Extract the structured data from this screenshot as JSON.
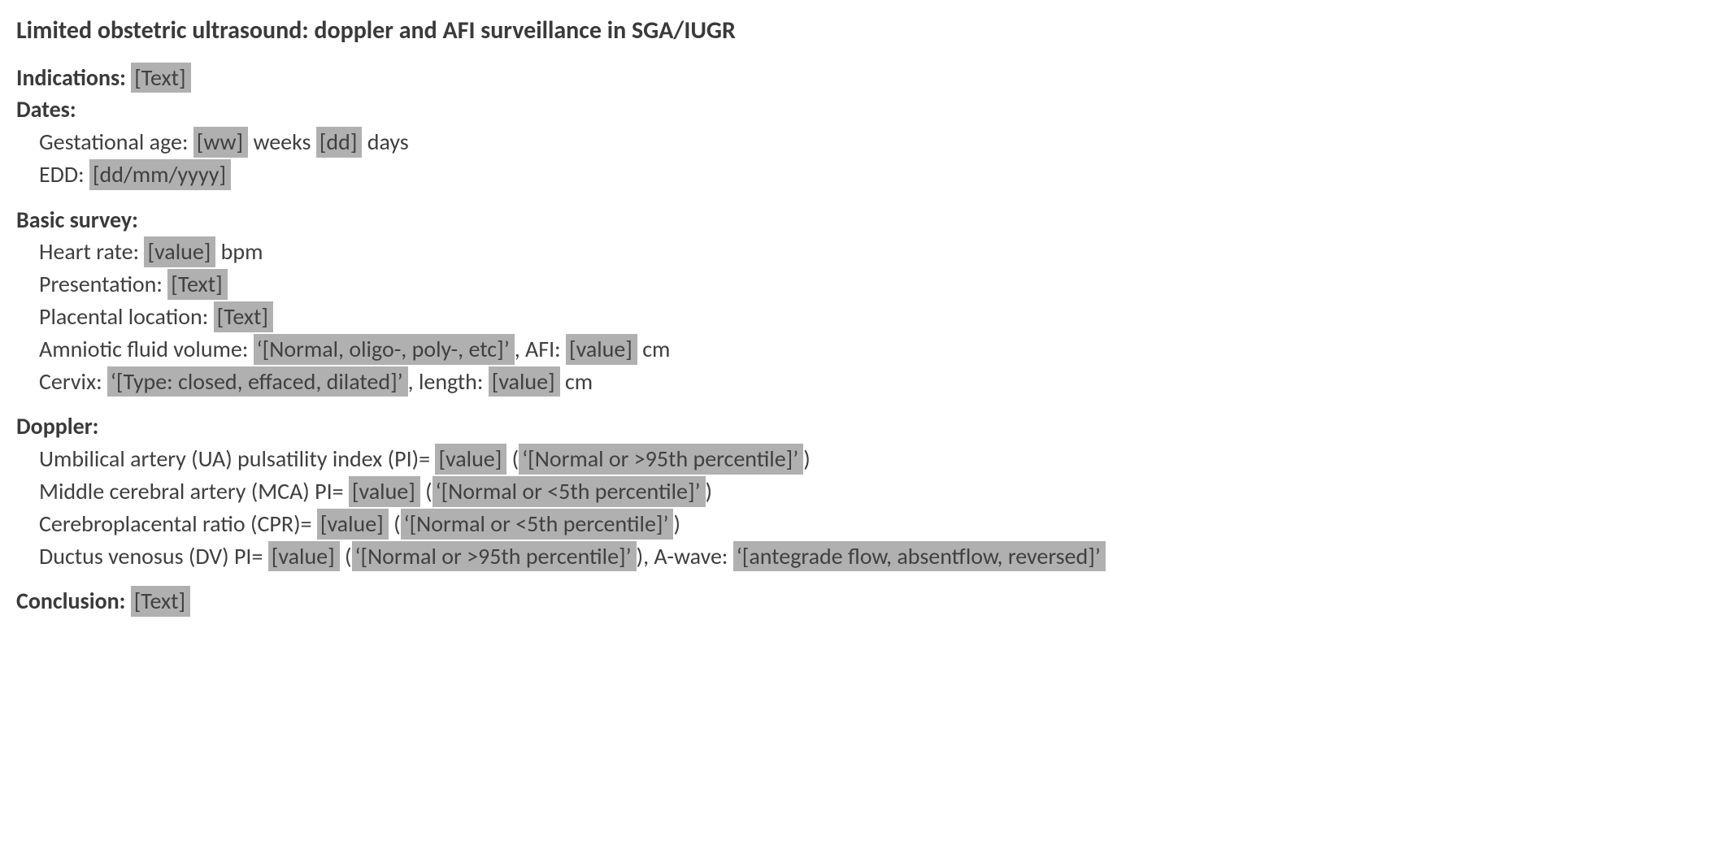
{
  "title": "Limited obstetric ultrasound: doppler and AFI surveillance in SGA/IUGR",
  "indications": {
    "label": "Indications:",
    "value": "[Text]"
  },
  "dates": {
    "heading": "Dates:",
    "ga_label": "Gestational age:",
    "ga_ww": "[ww]",
    "weeks_word": " weeks",
    "ga_dd": "[dd]",
    "days_word": " days",
    "edd_label": "EDD:",
    "edd_value": "[dd/mm/yyyy]"
  },
  "basic": {
    "heading": "Basic survey:",
    "hr_label": "Heart rate:",
    "hr_value": "[value]",
    "hr_unit": " bpm",
    "presentation_label": "Presentation:",
    "presentation_value": "[Text]",
    "placenta_label": "Placental location:",
    "placenta_value": "[Text]",
    "afv_label": "Amniotic fluid volume:",
    "afv_value": "‘[Normal, oligo-, poly-, etc]’ ",
    "afi_label": ", AFI:",
    "afi_value": "[value]",
    "afi_unit": " cm",
    "cervix_label": "Cervix:",
    "cervix_value": "‘[Type: closed, effaced, dilated]’ ",
    "cervix_len_label": ", length:",
    "cervix_len_value": "[value]",
    "cervix_len_unit": " cm"
  },
  "doppler": {
    "heading": "Doppler:",
    "ua_label": "Umbilical artery (UA) pulsatility index (PI)=",
    "ua_value": "[value]",
    "ua_note": "‘[Normal or >95th percentile]’ ",
    "mca_label": "Middle cerebral artery (MCA) PI=",
    "mca_value": "[value]",
    "mca_note": "‘[Normal or <5th percentile]’ ",
    "cpr_label": "Cerebroplacental ratio (CPR)=",
    "cpr_value": "[value]",
    "cpr_note": "‘[Normal or <5th percentile]’ ",
    "dv_label": "Ductus venosus (DV) PI=",
    "dv_value": "[value]",
    "dv_note": "‘[Normal or >95th percentile]’ ",
    "awave_label": "), A-wave:",
    "awave_value": "‘[antegrade flow, absentflow, reversed]’"
  },
  "conclusion": {
    "label": "Conclusion:",
    "value": "[Text]"
  },
  "colors": {
    "text": "#3f3f3f",
    "placeholder_bg": "#b0b0b0",
    "background": "#ffffff"
  },
  "typography": {
    "font_family": "Calibri",
    "body_pt": 21,
    "title_pt": 22,
    "weight_bold": 700
  }
}
